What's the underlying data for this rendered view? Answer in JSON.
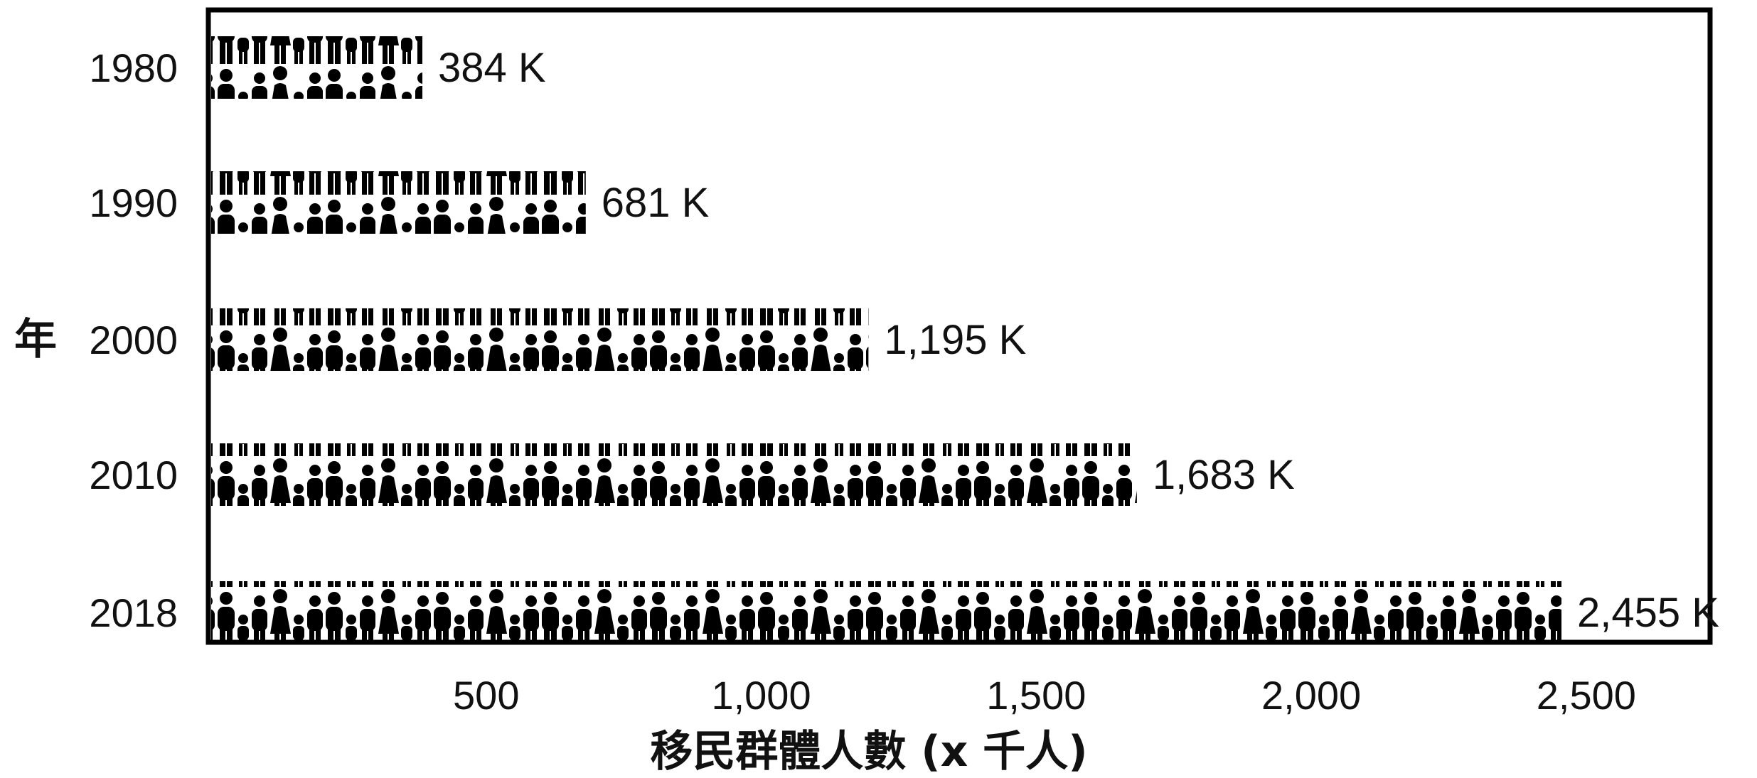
{
  "chart_data": {
    "type": "bar",
    "orientation": "horizontal",
    "style": "pictograph",
    "icon": "person-crowd-icon",
    "categories": [
      "1980",
      "1990",
      "2000",
      "2010",
      "2018"
    ],
    "values": [
      384,
      681,
      1195,
      1683,
      2455
    ],
    "value_labels": [
      "384 K",
      "681 K",
      "1,195 K",
      "1,683 K",
      "2,455 K"
    ],
    "xlabel": "移民群體人數 (x 千人)",
    "ylabel": "年",
    "x_ticks": [
      500,
      1000,
      1500,
      2000,
      2500
    ],
    "x_tick_labels": [
      "500",
      "1,000",
      "1,500",
      "2,000",
      "2,500"
    ],
    "xlim": [
      0,
      2720
    ],
    "grid": false,
    "colors": {
      "bar": "#000000",
      "frame": "#000000",
      "background": "#ffffff"
    }
  }
}
